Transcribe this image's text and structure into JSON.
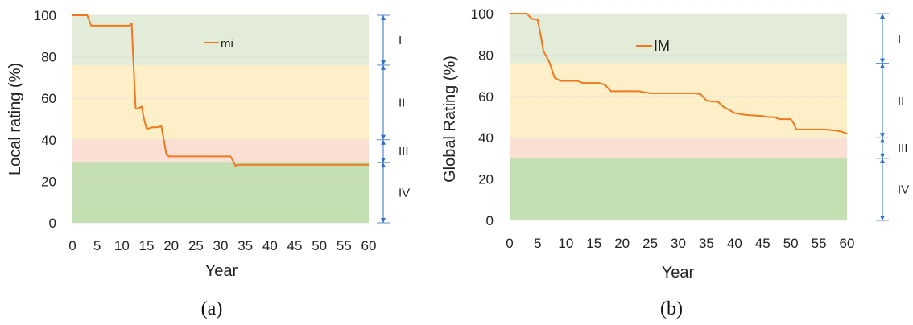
{
  "colors": {
    "zone_I": "#e2ecd8",
    "zone_II": "#fdf0c9",
    "zone_III": "#fbdfd4",
    "zone_IV": "#c4dfb2",
    "series_line": "#f07820",
    "bracket": "#2f6ec6",
    "gridline": "#d9d9d9"
  },
  "chart_data": [
    {
      "type": "line",
      "caption": "(a)",
      "xlabel": "Year",
      "ylabel": "Local rating (%)",
      "xlim": [
        0,
        60
      ],
      "ylim": [
        0,
        100
      ],
      "xticks": [
        0,
        5,
        10,
        15,
        20,
        25,
        30,
        35,
        40,
        45,
        50,
        55,
        60
      ],
      "yticks": [
        0,
        20,
        40,
        60,
        80,
        100
      ],
      "legend": {
        "position": "top-center",
        "entries": [
          "mi"
        ]
      },
      "zones": [
        {
          "label": "I",
          "from": 76,
          "to": 100
        },
        {
          "label": "II",
          "from": 40,
          "to": 76
        },
        {
          "label": "III",
          "from": 29,
          "to": 40
        },
        {
          "label": "IV",
          "from": 0,
          "to": 29
        }
      ],
      "series": [
        {
          "name": "mi",
          "x": [
            0,
            2,
            3,
            3.8,
            6,
            8,
            10,
            11.5,
            12,
            12.3,
            12.8,
            13.2,
            14,
            14.5,
            15,
            15.5,
            16,
            17,
            18,
            18.5,
            19,
            19.5,
            20,
            25,
            30,
            32,
            32.5,
            33,
            33.5,
            34,
            40,
            50,
            60
          ],
          "y": [
            100,
            100,
            100,
            95,
            95,
            95,
            95,
            95,
            96,
            80,
            55,
            55,
            56,
            50,
            45.5,
            45.5,
            46,
            46,
            46.5,
            40,
            33,
            32,
            32,
            32,
            32,
            32,
            30,
            27.5,
            28,
            28,
            28,
            28,
            28
          ]
        }
      ]
    },
    {
      "type": "line",
      "caption": "(b)",
      "xlabel": "Year",
      "ylabel": "Global Rating (%)",
      "xlim": [
        0,
        60
      ],
      "ylim": [
        0,
        100
      ],
      "xticks": [
        0,
        5,
        10,
        15,
        20,
        25,
        30,
        35,
        40,
        45,
        50,
        55,
        60
      ],
      "yticks": [
        0,
        20,
        40,
        60,
        80,
        100
      ],
      "legend": {
        "position": "top-center",
        "entries": [
          "IM"
        ]
      },
      "zones": [
        {
          "label": "I",
          "from": 76,
          "to": 100
        },
        {
          "label": "II",
          "from": 40,
          "to": 76
        },
        {
          "label": "III",
          "from": 30,
          "to": 40
        },
        {
          "label": "IV",
          "from": 0,
          "to": 30
        }
      ],
      "series": [
        {
          "name": "IM",
          "x": [
            0,
            3,
            4,
            5,
            5.5,
            6,
            7,
            8,
            9,
            12,
            13,
            16,
            17,
            18,
            20,
            22,
            23,
            24,
            25,
            33,
            34,
            35,
            36,
            37,
            38,
            39,
            40,
            42,
            45,
            46,
            47,
            48,
            50,
            50.5,
            51,
            55,
            56,
            58,
            59,
            60
          ],
          "y": [
            100,
            100,
            97.5,
            97,
            90,
            82,
            77,
            69,
            67.5,
            67.5,
            66.5,
            66.5,
            65.5,
            62.5,
            62.5,
            62.5,
            62.5,
            62,
            61.5,
            61.5,
            61,
            58,
            57.5,
            57.5,
            55,
            53.5,
            52,
            51,
            50.5,
            50,
            50,
            49,
            49,
            47,
            44,
            44,
            44,
            43.5,
            43,
            42
          ]
        }
      ]
    }
  ]
}
